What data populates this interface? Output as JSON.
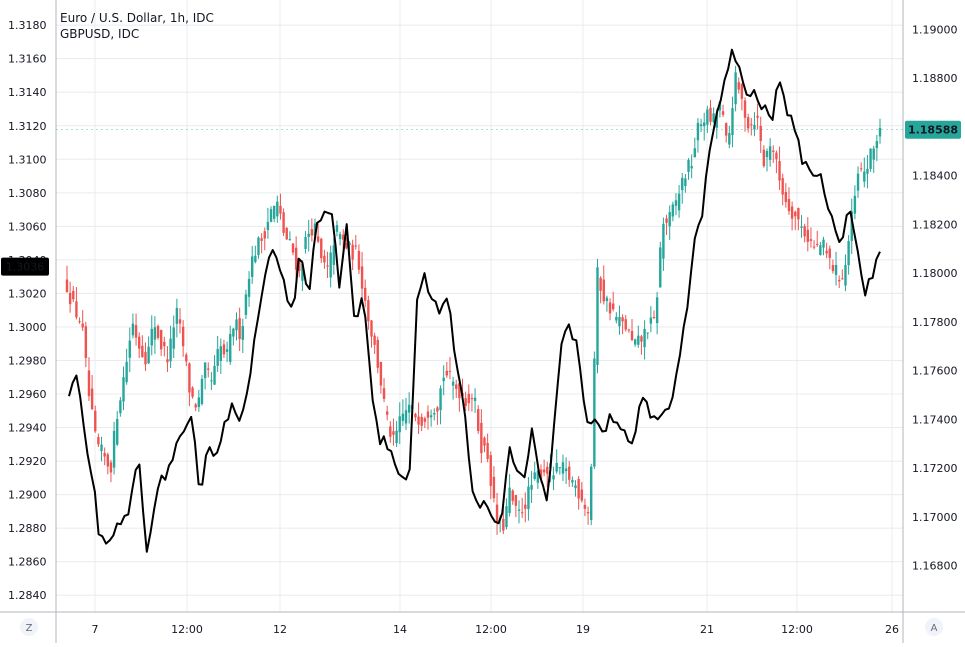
{
  "colors": {
    "up": "#26a69a",
    "down": "#ef5350",
    "line": "#000000",
    "grid": "#e8ecef",
    "axis": "#b2b5be",
    "text": "#131722",
    "left_badge_bg": "#000000",
    "right_badge_bg": "#26a69a"
  },
  "legend": {
    "main": "Euro / U.S. Dollar, 1h, IDC",
    "compare": "GBPUSD, IDC"
  },
  "corner_buttons": {
    "left": "Z",
    "right": "A"
  },
  "chart_data": {
    "type": "candlestick",
    "title": "Euro / U.S. Dollar, 1h, IDC",
    "xlabel": "",
    "ylabel": "",
    "x_tick_labels": [
      "7",
      "12:00",
      "12",
      "14",
      "12:00",
      "19",
      "21",
      "12:00",
      "26"
    ],
    "left_axis": {
      "ylim": [
        1.283,
        1.3195
      ],
      "ticks": [
        "1.3180",
        "1.3160",
        "1.3140",
        "1.3120",
        "1.3100",
        "1.3080",
        "1.3060",
        "1.3040",
        "1.3020",
        "1.3000",
        "1.2980",
        "1.2960",
        "1.2940",
        "1.2920",
        "1.2900",
        "1.2880",
        "1.2860",
        "1.2840"
      ],
      "current_label": "1.3036",
      "current_value": 1.3036
    },
    "right_axis": {
      "ylim": [
        1.1661,
        1.1912
      ],
      "ticks": [
        "1.19000",
        "1.18800",
        "1.18600",
        "1.18400",
        "1.18200",
        "1.18000",
        "1.17800",
        "1.17600",
        "1.17400",
        "1.17200",
        "1.17000",
        "1.16800"
      ],
      "current_label": "1.18588",
      "current_value": 1.18588
    },
    "series": [
      {
        "name": "GBPUSD, IDC",
        "kind": "line",
        "axis": "left",
        "close_keypoints": [
          1.2957,
          1.297,
          1.2935,
          1.2912,
          1.2874,
          1.2866,
          1.2878,
          1.2884,
          1.2895,
          1.2923,
          1.2868,
          1.2892,
          1.2908,
          1.2917,
          1.2931,
          1.2935,
          1.2945,
          1.2891,
          1.2935,
          1.2922,
          1.2941,
          1.2952,
          1.2945,
          1.2962,
          1.299,
          1.302,
          1.3041,
          1.3044,
          1.3022,
          1.3012,
          1.3049,
          1.3018,
          1.3062,
          1.3066,
          1.3065,
          1.3026,
          1.306,
          1.3002,
          1.3021,
          1.297,
          1.2935,
          1.2931,
          1.2922,
          1.2908,
          1.2904,
          1.3014,
          1.303,
          1.3015,
          1.3009,
          1.3022,
          1.2978,
          1.2958,
          1.291,
          1.289,
          1.29,
          1.288,
          1.2888,
          1.2925,
          1.2913,
          1.2908,
          1.294,
          1.291,
          1.2894,
          1.295,
          1.2998,
          1.2999,
          1.2985,
          1.294,
          1.2944,
          1.2935,
          1.2945,
          1.2945,
          1.2939,
          1.2925,
          1.2959,
          1.2953,
          1.294,
          1.2946,
          1.2955,
          1.2984,
          1.3011,
          1.3049,
          1.307,
          1.3105,
          1.3131,
          1.3147,
          1.3165,
          1.315,
          1.3137,
          1.3138,
          1.313,
          1.3122,
          1.315,
          1.313,
          1.3114,
          1.31,
          1.3093,
          1.3092,
          1.3079,
          1.306,
          1.3052,
          1.3076,
          1.3046,
          1.3022,
          1.303,
          1.3043
        ]
      },
      {
        "name": "Euro / U.S. Dollar, 1h, IDC",
        "kind": "candles",
        "axis": "right",
        "close_keypoints": [
          1.1795,
          1.1785,
          1.178,
          1.175,
          1.173,
          1.1725,
          1.172,
          1.1745,
          1.176,
          1.178,
          1.177,
          1.1765,
          1.178,
          1.177,
          1.1765,
          1.1785,
          1.177,
          1.175,
          1.1745,
          1.176,
          1.1755,
          1.177,
          1.1765,
          1.178,
          1.1775,
          1.18,
          1.181,
          1.1815,
          1.1825,
          1.1828,
          1.1815,
          1.181,
          1.18,
          1.1815,
          1.182,
          1.1805,
          1.18,
          1.1818,
          1.1813,
          1.1809,
          1.1808,
          1.179,
          1.1775,
          1.176,
          1.174,
          1.173,
          1.174,
          1.1745,
          1.1742,
          1.174,
          1.1745,
          1.1746,
          1.176,
          1.1755,
          1.1752,
          1.1748,
          1.175,
          1.173,
          1.1725,
          1.17,
          1.1695,
          1.171,
          1.17,
          1.1705,
          1.1713,
          1.1718,
          1.172,
          1.1718,
          1.172,
          1.1717,
          1.1713,
          1.1708,
          1.17,
          1.18,
          1.179,
          1.1785,
          1.178,
          1.1778,
          1.177,
          1.1772,
          1.1778,
          1.178,
          1.182,
          1.1822,
          1.183,
          1.184,
          1.1845,
          1.186,
          1.1865,
          1.1862,
          1.187,
          1.185,
          1.188,
          1.187,
          1.186,
          1.1865,
          1.1845,
          1.1855,
          1.184,
          1.183,
          1.1825,
          1.182,
          1.1815,
          1.181,
          1.1812,
          1.1805,
          1.18,
          1.1798,
          1.182,
          1.184,
          1.1842,
          1.185,
          1.186
        ]
      }
    ]
  }
}
